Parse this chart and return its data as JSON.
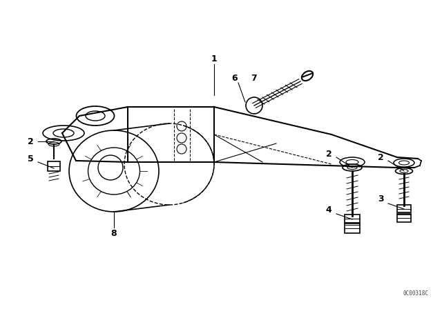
{
  "background_color": "#ffffff",
  "line_color": "#000000",
  "watermark": "0C00318C",
  "figsize": [
    6.4,
    4.48
  ],
  "dpi": 100
}
